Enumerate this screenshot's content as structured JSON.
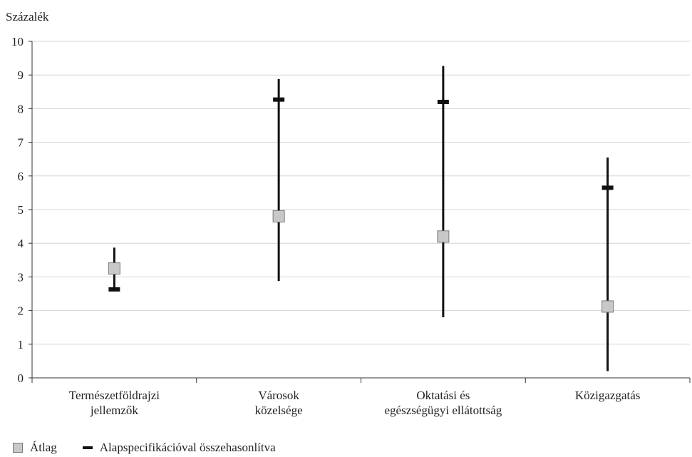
{
  "chart_data": {
    "type": "error-bar",
    "ylabel": "Százalék",
    "ylim": [
      0,
      10
    ],
    "yticks": [
      "0",
      "1",
      "2",
      "3",
      "4",
      "5",
      "6",
      "7",
      "8",
      "9",
      "10"
    ],
    "grid": true,
    "categories": [
      [
        "Természetföldrajzi",
        "jellemzők"
      ],
      [
        "Városok",
        "közelsége"
      ],
      [
        "Oktatási és",
        "egészségügyi ellátottság"
      ],
      [
        "Közigazgatás"
      ]
    ],
    "ranges": [
      {
        "low": 2.6,
        "high": 3.87
      },
      {
        "low": 2.88,
        "high": 8.88
      },
      {
        "low": 1.8,
        "high": 9.27
      },
      {
        "low": 0.2,
        "high": 6.55
      }
    ],
    "series": [
      {
        "name": "Átlag",
        "marker": "square",
        "color": "#c8c8c8",
        "values": [
          3.25,
          4.8,
          4.2,
          2.12
        ]
      },
      {
        "name": "Alapspecifikációval összehasonlítva",
        "marker": "dash",
        "color": "#111111",
        "values": [
          2.63,
          8.27,
          8.2,
          5.65
        ]
      }
    ],
    "legend_position": "bottom-left"
  }
}
